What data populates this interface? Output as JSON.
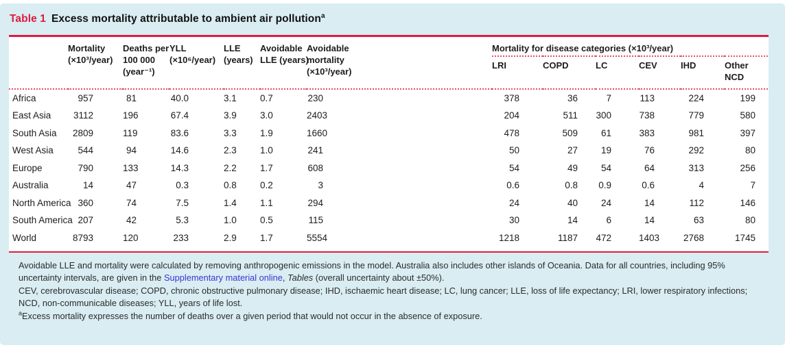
{
  "title": {
    "label": "Table 1",
    "text": "Excess mortality attributable to ambient air pollution",
    "superscript": "a"
  },
  "colors": {
    "panel_blue": "#d9edf2",
    "accent_red": "#dd1b40",
    "dotted_red": "#e8496b",
    "link_blue": "#3636d2"
  },
  "table": {
    "group_header": "Mortality for disease categories (×10³/year)",
    "main_headers": [
      {
        "lines": [
          "Mortality",
          "(×10³/year)"
        ]
      },
      {
        "lines": [
          "Deaths per",
          "100 000",
          "(year⁻¹)"
        ]
      },
      {
        "lines": [
          "YLL",
          "(×10⁶/year)"
        ]
      },
      {
        "lines": [
          "LLE",
          "(years)"
        ]
      },
      {
        "lines": [
          "Avoidable",
          "LLE (years)"
        ]
      },
      {
        "lines": [
          "Avoidable",
          "mortality",
          "(×10³/year)"
        ]
      }
    ],
    "sub_headers": [
      {
        "lines": [
          "LRI"
        ]
      },
      {
        "lines": [
          "COPD"
        ]
      },
      {
        "lines": [
          "LC"
        ]
      },
      {
        "lines": [
          "CEV"
        ]
      },
      {
        "lines": [
          "IHD"
        ]
      },
      {
        "lines": [
          "Other",
          "NCD"
        ]
      }
    ],
    "rows": [
      [
        "Africa",
        "957",
        "81",
        "40.0",
        "3.1",
        "0.7",
        "230",
        "378",
        "36",
        "7",
        "113",
        "224",
        "199"
      ],
      [
        "East Asia",
        "3112",
        "196",
        "67.4",
        "3.9",
        "3.0",
        "2403",
        "204",
        "511",
        "300",
        "738",
        "779",
        "580"
      ],
      [
        "South Asia",
        "2809",
        "119",
        "83.6",
        "3.3",
        "1.9",
        "1660",
        "478",
        "509",
        "61",
        "383",
        "981",
        "397"
      ],
      [
        "West Asia",
        "544",
        "94",
        "14.6",
        "2.3",
        "1.0",
        "241",
        "50",
        "27",
        "19",
        "76",
        "292",
        "80"
      ],
      [
        "Europe",
        "790",
        "133",
        "14.3",
        "2.2",
        "1.7",
        "608",
        "54",
        "49",
        "54",
        "64",
        "313",
        "256"
      ],
      [
        "Australia",
        "14",
        "47",
        "0.3",
        "0.8",
        "0.2",
        "3",
        "0.6",
        "0.8",
        "0.9",
        "0.6",
        "4",
        "7"
      ],
      [
        "North America",
        "360",
        "74",
        "7.5",
        "1.4",
        "1.1",
        "294",
        "24",
        "40",
        "24",
        "14",
        "112",
        "146"
      ],
      [
        "South America",
        "207",
        "42",
        "5.3",
        "1.0",
        "0.5",
        "115",
        "30",
        "14",
        "6",
        "14",
        "63",
        "80"
      ],
      [
        "World",
        "8793",
        "120",
        "233",
        "2.9",
        "1.7",
        "5554",
        "1218",
        "1187",
        "472",
        "1403",
        "2768",
        "1745"
      ]
    ]
  },
  "footnotes": {
    "note1_pre": "Avoidable LLE and mortality were calculated by removing anthropogenic emissions in the model. Australia also includes other islands of Oceania. Data for all countries, including 95% uncertainty intervals, are given in the ",
    "note1_link": "Supplementary material online",
    "note1_mid": ", ",
    "note1_italic": "Tables",
    "note1_post": " (overall uncertainty about ±50%).",
    "note2": "CEV, cerebrovascular disease; COPD, chronic obstructive pulmonary disease; IHD, ischaemic heart disease; LC, lung cancer; LLE, loss of life expectancy; LRI, lower respiratory infections; NCD, non-communicable diseases; YLL, years of life lost.",
    "note3_sup": "a",
    "note3": "Excess mortality expresses the number of deaths over a given period that would not occur in the absence of exposure."
  }
}
